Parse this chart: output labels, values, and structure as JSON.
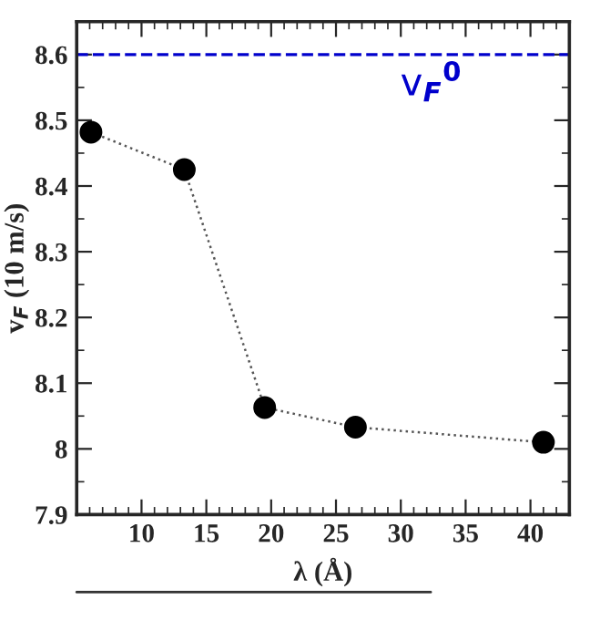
{
  "chart_data": {
    "type": "line",
    "xlabel": "λ (Å)",
    "ylabel": "v$_{F}$ (10 m/s)",
    "xlim": [
      5,
      43
    ],
    "xticks": [
      10,
      15,
      20,
      25,
      30,
      35,
      40
    ],
    "ylim": [
      7.9,
      8.65
    ],
    "yticks": [
      7.9,
      8,
      8.1,
      8.2,
      8.3,
      8.4,
      8.5,
      8.6
    ],
    "marker": "circle",
    "line_style": "dotted",
    "grid": false,
    "series": [
      {
        "color": "#000000",
        "x": [
          6.1,
          13.3,
          19.5,
          26.5,
          41
        ],
        "values": [
          8.482,
          8.425,
          8.063,
          8.033,
          8.01
        ]
      }
    ],
    "ref_lines": [
      {
        "axis": "y",
        "value": 8.6,
        "label": "v$_{F}$$^{0}$",
        "color": "#0000cc",
        "line_style": "dashed"
      }
    ]
  }
}
